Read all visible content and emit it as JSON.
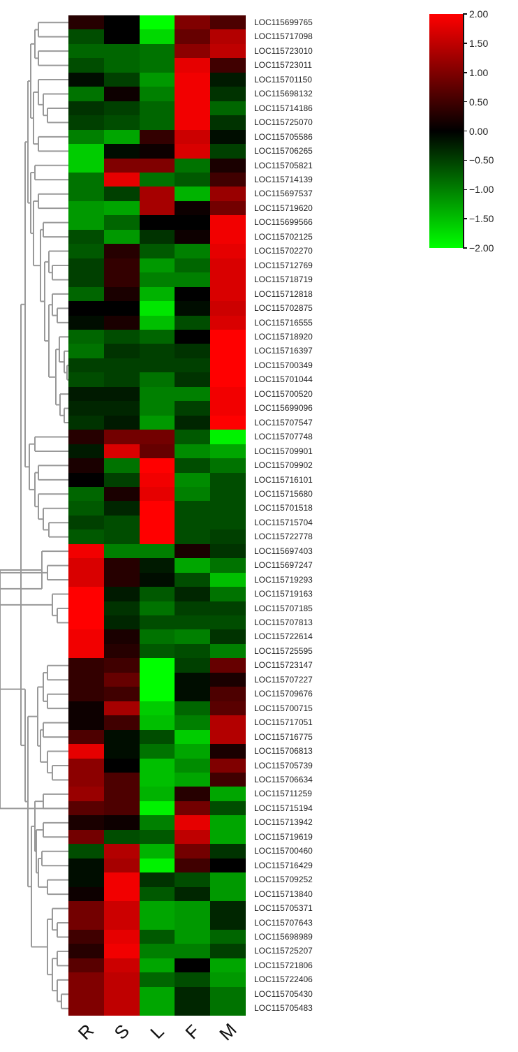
{
  "chart_data": {
    "type": "heatmap",
    "title": "",
    "xlabel": "",
    "ylabel": "",
    "columns": [
      "R",
      "S",
      "L",
      "F",
      "M"
    ],
    "rows": [
      "LOC115699765",
      "LOC115717098",
      "LOC115723010",
      "LOC115723011",
      "LOC115701150",
      "LOC115698132",
      "LOC115714186",
      "LOC115725070",
      "LOC115705586",
      "LOC115706265",
      "LOC115705821",
      "LOC115714139",
      "LOC115697537",
      "LOC115719620",
      "LOC115699566",
      "LOC115702125",
      "LOC115702270",
      "LOC115712769",
      "LOC115718719",
      "LOC115712818",
      "LOC115702875",
      "LOC115716555",
      "LOC115718920",
      "LOC115716397",
      "LOC115700349",
      "LOC115701044",
      "LOC115700520",
      "LOC115699096",
      "LOC115707547",
      "LOC115707748",
      "LOC115709901",
      "LOC115709902",
      "LOC115716101",
      "LOC115715680",
      "LOC115701518",
      "LOC115715704",
      "LOC115722778",
      "LOC115697403",
      "LOC115697247",
      "LOC115719293",
      "LOC115719163",
      "LOC115707185",
      "LOC115707813",
      "LOC115722614",
      "LOC115725595",
      "LOC115723147",
      "LOC115707227",
      "LOC115709676",
      "LOC115700715",
      "LOC115717051",
      "LOC115716775",
      "LOC115706813",
      "LOC115705739",
      "LOC115706634",
      "LOC115711259",
      "LOC115715194",
      "LOC115713942",
      "LOC115719619",
      "LOC115700460",
      "LOC115716429",
      "LOC115709252",
      "LOC115713840",
      "LOC115705371",
      "LOC115707643",
      "LOC115698989",
      "LOC115725207",
      "LOC115721806",
      "LOC115722406",
      "LOC115705430",
      "LOC115705483"
    ],
    "values": [
      [
        0.3,
        0.0,
        -2.0,
        1.0,
        0.6
      ],
      [
        -0.6,
        0.0,
        -1.7,
        0.8,
        1.4
      ],
      [
        -0.8,
        -0.8,
        -0.9,
        1.1,
        1.5
      ],
      [
        -0.6,
        -0.8,
        -0.9,
        1.8,
        0.5
      ],
      [
        -0.1,
        -0.5,
        -1.2,
        1.9,
        -0.2
      ],
      [
        -0.9,
        0.1,
        -1.0,
        1.9,
        -0.4
      ],
      [
        -0.4,
        -0.5,
        -0.8,
        1.9,
        -0.8
      ],
      [
        -0.5,
        -0.6,
        -0.8,
        1.9,
        -0.4
      ],
      [
        -1.0,
        -1.3,
        0.4,
        1.6,
        -0.1
      ],
      [
        -1.6,
        -0.1,
        0.1,
        1.7,
        -0.5
      ],
      [
        -1.6,
        1.0,
        1.0,
        -0.9,
        0.2
      ],
      [
        -0.9,
        1.8,
        -0.9,
        -0.7,
        0.5
      ],
      [
        -0.9,
        -0.5,
        1.3,
        -1.4,
        1.2
      ],
      [
        -1.2,
        -1.3,
        1.3,
        0.1,
        0.9
      ],
      [
        -1.2,
        -0.8,
        0.0,
        0.0,
        1.9
      ],
      [
        -0.6,
        -1.2,
        -0.4,
        0.1,
        1.9
      ],
      [
        -0.7,
        0.3,
        -0.7,
        -1.0,
        1.8
      ],
      [
        -0.5,
        0.4,
        -1.2,
        -0.8,
        1.7
      ],
      [
        -0.5,
        0.4,
        -1.0,
        -1.0,
        1.7
      ],
      [
        -0.8,
        0.2,
        -1.4,
        0.0,
        1.7
      ],
      [
        0.0,
        0.0,
        -1.8,
        -0.1,
        1.6
      ],
      [
        -0.1,
        0.2,
        -1.5,
        -0.6,
        1.7
      ],
      [
        -0.8,
        -0.6,
        -0.8,
        0.0,
        2.0
      ],
      [
        -0.9,
        -0.4,
        -0.5,
        -0.4,
        2.0
      ],
      [
        -0.5,
        -0.5,
        -0.5,
        -0.5,
        2.0
      ],
      [
        -0.6,
        -0.5,
        -0.9,
        -0.4,
        2.0
      ],
      [
        -0.2,
        -0.2,
        -1.0,
        -1.0,
        1.9
      ],
      [
        -0.3,
        -0.3,
        -1.0,
        -0.5,
        1.9
      ],
      [
        -0.4,
        -0.2,
        -1.2,
        -0.3,
        2.0
      ],
      [
        0.3,
        0.9,
        0.9,
        -0.7,
        -1.9
      ],
      [
        -0.2,
        1.7,
        0.8,
        -1.1,
        -1.3
      ],
      [
        0.2,
        -0.9,
        2.0,
        -0.6,
        -0.9
      ],
      [
        0.0,
        -0.5,
        1.9,
        -1.1,
        -0.6
      ],
      [
        -0.8,
        0.2,
        1.8,
        -1.0,
        -0.6
      ],
      [
        -0.7,
        -0.3,
        2.0,
        -0.6,
        -0.6
      ],
      [
        -0.5,
        -0.6,
        2.0,
        -0.6,
        -0.6
      ],
      [
        -0.7,
        -0.6,
        2.0,
        -0.6,
        -0.5
      ],
      [
        1.9,
        -1.0,
        -1.0,
        0.2,
        -0.4
      ],
      [
        1.7,
        0.3,
        -0.2,
        -1.3,
        -0.9
      ],
      [
        1.7,
        0.3,
        -0.1,
        -0.6,
        -1.5
      ],
      [
        2.0,
        -0.2,
        -0.7,
        -0.3,
        -0.9
      ],
      [
        2.0,
        -0.4,
        -0.9,
        -0.5,
        -0.5
      ],
      [
        2.0,
        -0.3,
        -0.6,
        -0.6,
        -0.6
      ],
      [
        1.9,
        0.2,
        -0.9,
        -1.0,
        -0.4
      ],
      [
        1.9,
        0.3,
        -0.7,
        -0.6,
        -1.0
      ],
      [
        0.4,
        0.5,
        -2.0,
        -0.5,
        0.8
      ],
      [
        0.4,
        0.8,
        -2.0,
        -0.1,
        0.2
      ],
      [
        0.4,
        0.5,
        -2.0,
        -0.1,
        0.6
      ],
      [
        0.1,
        1.3,
        -1.6,
        -0.8,
        0.7
      ],
      [
        0.1,
        0.5,
        -1.5,
        -1.0,
        1.4
      ],
      [
        0.6,
        -0.1,
        -0.6,
        -1.6,
        1.4
      ],
      [
        1.8,
        -0.1,
        -0.9,
        -1.3,
        0.2
      ],
      [
        1.1,
        0.0,
        -1.5,
        -1.1,
        1.0
      ],
      [
        1.1,
        0.6,
        -1.5,
        -1.3,
        0.5
      ],
      [
        1.2,
        0.6,
        -1.4,
        0.3,
        -1.3
      ],
      [
        0.7,
        0.6,
        -1.9,
        0.9,
        -0.6
      ],
      [
        0.2,
        0.1,
        -1.0,
        1.8,
        -1.3
      ],
      [
        0.9,
        -0.6,
        -0.7,
        1.5,
        -1.3
      ],
      [
        -0.6,
        1.4,
        -1.4,
        0.9,
        -0.4
      ],
      [
        -0.1,
        1.3,
        -1.9,
        0.5,
        0.0
      ],
      [
        -0.1,
        1.9,
        -0.4,
        -0.6,
        -1.2
      ],
      [
        0.1,
        1.9,
        -0.7,
        -0.3,
        -1.2
      ],
      [
        0.9,
        1.6,
        -1.3,
        -1.2,
        -0.3
      ],
      [
        0.9,
        1.6,
        -1.3,
        -1.2,
        -0.3
      ],
      [
        0.5,
        1.8,
        -0.7,
        -1.2,
        -0.8
      ],
      [
        0.3,
        1.9,
        -1.0,
        -1.0,
        -0.5
      ],
      [
        0.7,
        1.6,
        -1.3,
        0.0,
        -1.3
      ],
      [
        1.0,
        1.5,
        -0.8,
        -0.6,
        -1.2
      ],
      [
        1.0,
        1.5,
        -1.3,
        -0.3,
        -0.9
      ],
      [
        1.0,
        1.5,
        -1.3,
        -0.3,
        -0.9
      ]
    ],
    "color_scale": {
      "min": -2.0,
      "max": 2.0,
      "low_color": "#00ff00",
      "mid_color": "#000000",
      "high_color": "#ff0000"
    },
    "legend": {
      "position": "top-right",
      "ticks": [
        "2.00",
        "1.50",
        "1.00",
        "0.50",
        "0.00",
        "−0.50",
        "−1.00",
        "−1.50",
        "−2.00"
      ]
    },
    "dendrogram": {
      "side": "left",
      "line_color": "#999999"
    },
    "grid": false
  }
}
